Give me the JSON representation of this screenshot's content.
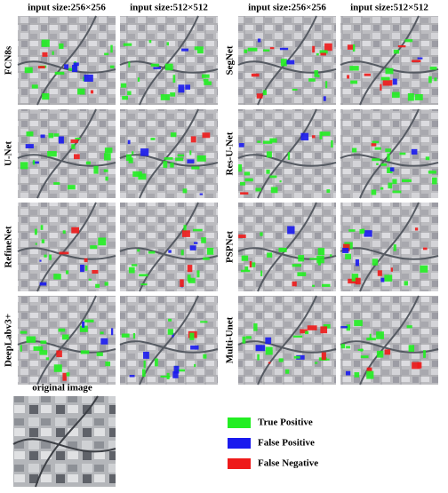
{
  "header": {
    "left_columns": [
      "input size:256×256",
      "input size:512×512"
    ],
    "right_columns": [
      "input size:256×256",
      "input size:512×512"
    ]
  },
  "rows_left": [
    "FCN8s",
    "U-Net",
    "RefineNet",
    "DeepLabv3+"
  ],
  "rows_right": [
    "SegNet",
    "Res-U-Net",
    "PSPNet",
    "Multi-Unet"
  ],
  "original_image": {
    "label": "original image"
  },
  "legend": [
    {
      "label": "True Positive",
      "color": "#22ee22"
    },
    {
      "label": "False Positive",
      "color": "#1a1aee"
    },
    {
      "label": "False Negative",
      "color": "#ee1a1a"
    }
  ]
}
